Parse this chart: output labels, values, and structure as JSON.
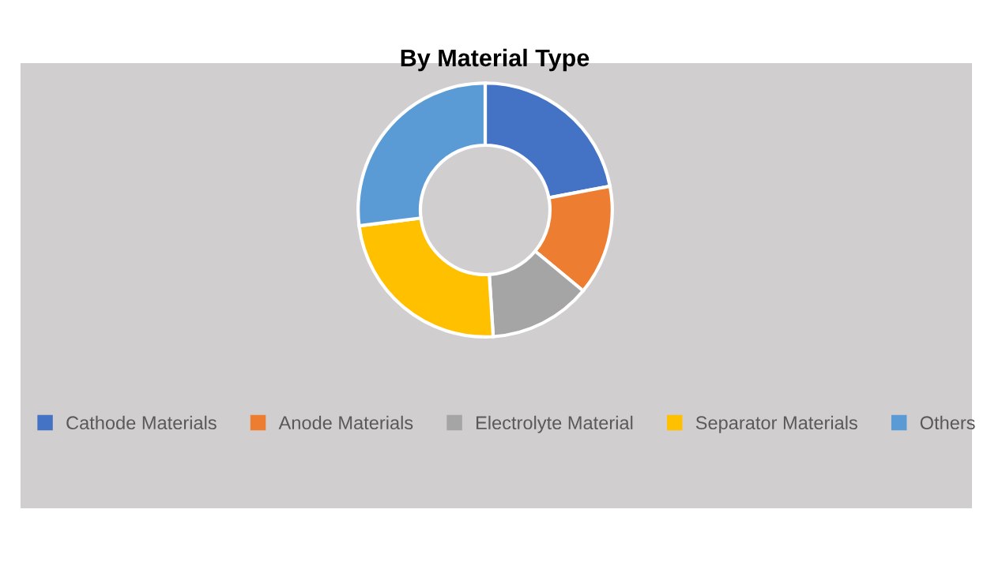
{
  "chart_data": {
    "type": "donut",
    "title": "By Material Type",
    "categories": [
      "Cathode Materials",
      "Anode Materials",
      "Electrolyte Material",
      "Separator Materials",
      "Others"
    ],
    "values": [
      22,
      14,
      13,
      24,
      27
    ],
    "colors": [
      "#4472c4",
      "#ed7d31",
      "#a5a5a5",
      "#ffc000",
      "#5b9bd5"
    ],
    "legend": "bottom"
  }
}
